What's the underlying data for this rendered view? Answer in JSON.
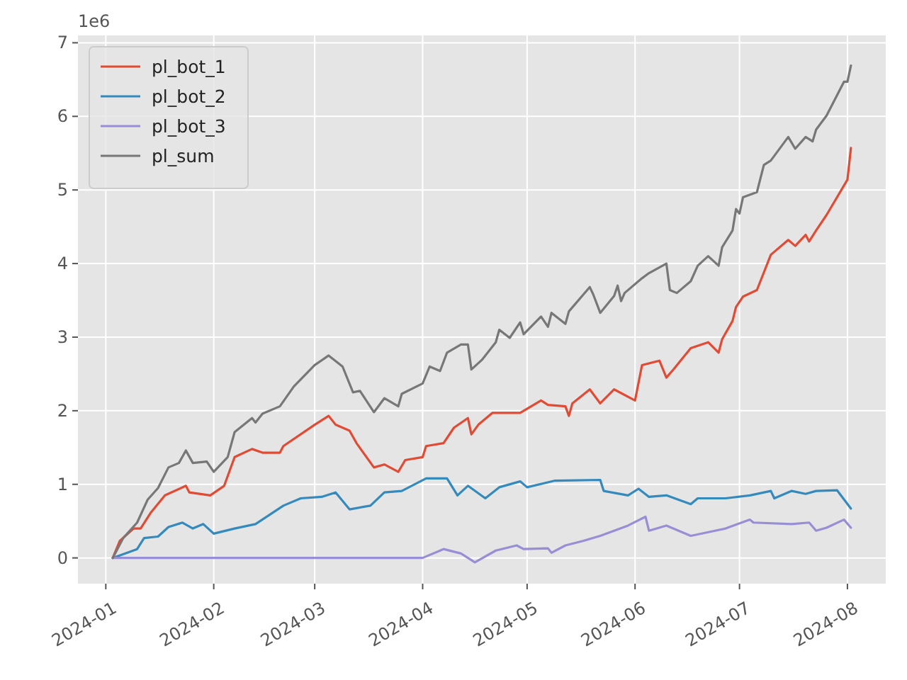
{
  "chart_data": {
    "type": "line",
    "xlim": [
      "2023-12-24",
      "2024-08-12"
    ],
    "ylim": [
      -0.35,
      7.1
    ],
    "xticks": [
      {
        "value": "2024-01-01",
        "label": "2024-01"
      },
      {
        "value": "2024-02-01",
        "label": "2024-02"
      },
      {
        "value": "2024-03-01",
        "label": "2024-03"
      },
      {
        "value": "2024-04-01",
        "label": "2024-04"
      },
      {
        "value": "2024-05-01",
        "label": "2024-05"
      },
      {
        "value": "2024-06-01",
        "label": "2024-06"
      },
      {
        "value": "2024-07-01",
        "label": "2024-07"
      },
      {
        "value": "2024-08-01",
        "label": "2024-08"
      }
    ],
    "yticks": [
      0,
      1,
      2,
      3,
      4,
      5,
      6,
      7
    ],
    "annotations": [
      "1e6"
    ],
    "grid": true,
    "legend": "top left",
    "line_style": "solid",
    "series": [
      {
        "name": "pl_bot_1",
        "color": "#e24a33",
        "x": [
          "2024-01-03",
          "2024-01-05",
          "2024-01-09",
          "2024-01-11",
          "2024-01-14",
          "2024-01-18",
          "2024-01-24",
          "2024-01-25",
          "2024-01-31",
          "2024-02-04",
          "2024-02-07",
          "2024-02-12",
          "2024-02-15",
          "2024-02-20",
          "2024-02-21",
          "2024-03-01",
          "2024-03-05",
          "2024-03-07",
          "2024-03-11",
          "2024-03-13",
          "2024-03-18",
          "2024-03-21",
          "2024-03-25",
          "2024-03-27",
          "2024-04-01",
          "2024-04-02",
          "2024-04-07",
          "2024-04-10",
          "2024-04-14",
          "2024-04-15",
          "2024-04-17",
          "2024-04-21",
          "2024-04-29",
          "2024-05-05",
          "2024-05-07",
          "2024-05-12",
          "2024-05-13",
          "2024-05-14",
          "2024-05-19",
          "2024-05-22",
          "2024-05-26",
          "2024-06-01",
          "2024-06-03",
          "2024-06-08",
          "2024-06-10",
          "2024-06-12",
          "2024-06-17",
          "2024-06-22",
          "2024-06-25",
          "2024-06-26",
          "2024-06-29",
          "2024-06-30",
          "2024-07-02",
          "2024-07-06",
          "2024-07-10",
          "2024-07-15",
          "2024-07-17",
          "2024-07-20",
          "2024-07-21",
          "2024-07-23",
          "2024-07-26",
          "2024-08-01",
          "2024-08-02"
        ],
        "values": [
          0,
          0.23,
          0.4,
          0.4,
          0.62,
          0.85,
          0.98,
          0.89,
          0.85,
          0.98,
          1.37,
          1.48,
          1.43,
          1.43,
          1.52,
          1.81,
          1.93,
          1.81,
          1.73,
          1.56,
          1.23,
          1.27,
          1.17,
          1.33,
          1.37,
          1.52,
          1.56,
          1.77,
          1.9,
          1.68,
          1.81,
          1.97,
          1.97,
          2.14,
          2.08,
          2.06,
          1.93,
          2.1,
          2.29,
          2.1,
          2.29,
          2.14,
          2.62,
          2.68,
          2.45,
          2.56,
          2.85,
          2.93,
          2.79,
          2.97,
          3.22,
          3.41,
          3.55,
          3.64,
          4.12,
          4.32,
          4.24,
          4.39,
          4.3,
          4.45,
          4.66,
          5.14,
          5.57
        ]
      },
      {
        "name": "pl_bot_2",
        "color": "#348abd",
        "x": [
          "2024-01-03",
          "2024-01-10",
          "2024-01-12",
          "2024-01-16",
          "2024-01-19",
          "2024-01-23",
          "2024-01-26",
          "2024-01-29",
          "2024-02-01",
          "2024-02-07",
          "2024-02-13",
          "2024-02-21",
          "2024-02-26",
          "2024-03-03",
          "2024-03-07",
          "2024-03-11",
          "2024-03-17",
          "2024-03-21",
          "2024-03-26",
          "2024-04-02",
          "2024-04-08",
          "2024-04-11",
          "2024-04-14",
          "2024-04-19",
          "2024-04-23",
          "2024-04-29",
          "2024-05-01",
          "2024-05-09",
          "2024-05-22",
          "2024-05-23",
          "2024-05-30",
          "2024-06-02",
          "2024-06-05",
          "2024-06-10",
          "2024-06-17",
          "2024-06-19",
          "2024-06-27",
          "2024-07-04",
          "2024-07-10",
          "2024-07-11",
          "2024-07-16",
          "2024-07-20",
          "2024-07-23",
          "2024-07-29",
          "2024-08-02"
        ],
        "values": [
          0,
          0.12,
          0.27,
          0.29,
          0.42,
          0.48,
          0.4,
          0.46,
          0.33,
          0.4,
          0.46,
          0.71,
          0.81,
          0.83,
          0.89,
          0.66,
          0.71,
          0.89,
          0.91,
          1.08,
          1.08,
          0.85,
          0.98,
          0.81,
          0.96,
          1.04,
          0.96,
          1.05,
          1.06,
          0.91,
          0.85,
          0.94,
          0.83,
          0.85,
          0.73,
          0.81,
          0.81,
          0.85,
          0.91,
          0.81,
          0.91,
          0.87,
          0.91,
          0.92,
          0.67
        ]
      },
      {
        "name": "pl_bot_3",
        "color": "#988ed5",
        "x": [
          "2024-01-03",
          "2024-04-01",
          "2024-04-07",
          "2024-04-12",
          "2024-04-16",
          "2024-04-22",
          "2024-04-28",
          "2024-04-30",
          "2024-05-07",
          "2024-05-08",
          "2024-05-12",
          "2024-05-17",
          "2024-05-22",
          "2024-05-30",
          "2024-06-04",
          "2024-06-05",
          "2024-06-10",
          "2024-06-17",
          "2024-06-24",
          "2024-06-27",
          "2024-07-04",
          "2024-07-05",
          "2024-07-16",
          "2024-07-21",
          "2024-07-23",
          "2024-07-26",
          "2024-07-31",
          "2024-08-02"
        ],
        "values": [
          0,
          0,
          0.12,
          0.06,
          -0.06,
          0.1,
          0.17,
          0.12,
          0.13,
          0.07,
          0.17,
          0.23,
          0.3,
          0.44,
          0.56,
          0.37,
          0.44,
          0.3,
          0.37,
          0.4,
          0.52,
          0.48,
          0.46,
          0.48,
          0.37,
          0.41,
          0.52,
          0.41
        ]
      },
      {
        "name": "pl_sum",
        "color": "#777777",
        "x": [
          "2024-01-03",
          "2024-01-06",
          "2024-01-10",
          "2024-01-13",
          "2024-01-16",
          "2024-01-19",
          "2024-01-22",
          "2024-01-24",
          "2024-01-26",
          "2024-01-30",
          "2024-02-01",
          "2024-02-05",
          "2024-02-07",
          "2024-02-12",
          "2024-02-13",
          "2024-02-15",
          "2024-02-20",
          "2024-02-24",
          "2024-03-01",
          "2024-03-05",
          "2024-03-09",
          "2024-03-12",
          "2024-03-14",
          "2024-03-18",
          "2024-03-21",
          "2024-03-25",
          "2024-03-26",
          "2024-04-01",
          "2024-04-03",
          "2024-04-06",
          "2024-04-08",
          "2024-04-12",
          "2024-04-14",
          "2024-04-15",
          "2024-04-18",
          "2024-04-22",
          "2024-04-23",
          "2024-04-26",
          "2024-04-29",
          "2024-04-30",
          "2024-05-05",
          "2024-05-07",
          "2024-05-08",
          "2024-05-12",
          "2024-05-13",
          "2024-05-19",
          "2024-05-20",
          "2024-05-22",
          "2024-05-26",
          "2024-05-27",
          "2024-05-28",
          "2024-05-29",
          "2024-06-03",
          "2024-06-05",
          "2024-06-10",
          "2024-06-11",
          "2024-06-13",
          "2024-06-17",
          "2024-06-19",
          "2024-06-22",
          "2024-06-25",
          "2024-06-26",
          "2024-06-29",
          "2024-06-30",
          "2024-07-01",
          "2024-07-02",
          "2024-07-06",
          "2024-07-08",
          "2024-07-10",
          "2024-07-15",
          "2024-07-17",
          "2024-07-20",
          "2024-07-22",
          "2024-07-23",
          "2024-07-26",
          "2024-07-31",
          "2024-08-01",
          "2024-08-02"
        ],
        "values": [
          0,
          0.27,
          0.48,
          0.79,
          0.95,
          1.23,
          1.29,
          1.46,
          1.29,
          1.31,
          1.17,
          1.37,
          1.71,
          1.9,
          1.84,
          1.96,
          2.06,
          2.33,
          2.62,
          2.75,
          2.6,
          2.25,
          2.27,
          1.98,
          2.17,
          2.06,
          2.23,
          2.37,
          2.6,
          2.54,
          2.79,
          2.9,
          2.9,
          2.56,
          2.69,
          2.93,
          3.1,
          2.99,
          3.2,
          3.04,
          3.28,
          3.14,
          3.33,
          3.18,
          3.35,
          3.68,
          3.58,
          3.33,
          3.56,
          3.7,
          3.49,
          3.6,
          3.8,
          3.87,
          4.0,
          3.64,
          3.6,
          3.76,
          3.97,
          4.1,
          3.97,
          4.22,
          4.45,
          4.74,
          4.68,
          4.9,
          4.97,
          5.34,
          5.4,
          5.72,
          5.56,
          5.72,
          5.66,
          5.82,
          6.01,
          6.47,
          6.47,
          6.69
        ]
      }
    ]
  }
}
